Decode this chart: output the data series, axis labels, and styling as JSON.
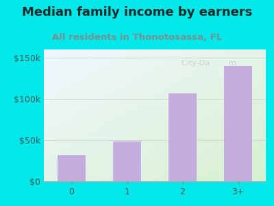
{
  "title": "Median family income by earners",
  "subtitle": "All residents in Thonotosassa, FL",
  "categories": [
    "0",
    "1",
    "2",
    "3+"
  ],
  "values": [
    32000,
    48000,
    107000,
    140000
  ],
  "bar_color": "#c4aee0",
  "background_color": "#00e8e8",
  "plot_bg_left": "#d8f0d0",
  "plot_bg_right": "#f0f8ff",
  "title_color": "#1a2a2a",
  "subtitle_color": "#7a9090",
  "tick_color": "#3a5a5a",
  "ylim": [
    0,
    160000
  ],
  "yticks": [
    0,
    50000,
    100000,
    150000
  ],
  "ytick_labels": [
    "$0",
    "$50k",
    "$100k",
    "$150k"
  ],
  "title_fontsize": 13,
  "subtitle_fontsize": 9.5,
  "tick_fontsize": 9
}
